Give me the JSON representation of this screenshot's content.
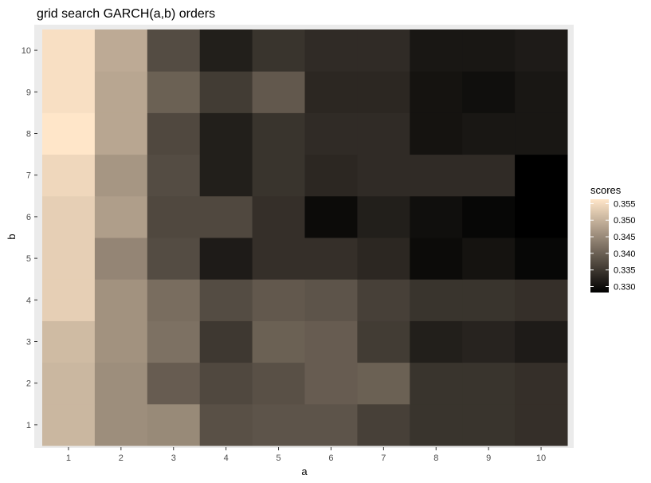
{
  "chart_data": {
    "type": "heatmap",
    "title": "grid search GARCH(a,b) orders",
    "xlabel": "a",
    "ylabel": "b",
    "x": [
      "1",
      "2",
      "3",
      "4",
      "5",
      "6",
      "7",
      "8",
      "9",
      "10"
    ],
    "y": [
      "1",
      "2",
      "3",
      "4",
      "5",
      "6",
      "7",
      "8",
      "9",
      "10"
    ],
    "legend": {
      "title": "scores",
      "position": "right",
      "ticks": [
        "0.355",
        "0.350",
        "0.345",
        "0.340",
        "0.335",
        "0.330"
      ],
      "tick_values": [
        0.355,
        0.35,
        0.345,
        0.34,
        0.335,
        0.33
      ],
      "min": 0.3282,
      "max": 0.3563,
      "low_color": "#000000",
      "high_color": "#FFE6C9"
    },
    "grid": true,
    "values": [
      [
        0.3505,
        0.3455,
        0.345,
        0.338,
        0.3385,
        0.3385,
        0.336,
        0.3345,
        0.3345,
        0.334
      ],
      [
        0.3505,
        0.3455,
        0.3395,
        0.337,
        0.338,
        0.3395,
        0.34,
        0.3345,
        0.3345,
        0.334
      ],
      [
        0.351,
        0.346,
        0.342,
        0.335,
        0.34,
        0.3395,
        0.3355,
        0.332,
        0.3325,
        0.3315
      ],
      [
        0.3535,
        0.346,
        0.3415,
        0.3375,
        0.339,
        0.3385,
        0.336,
        0.3345,
        0.3345,
        0.334
      ],
      [
        0.3535,
        0.3445,
        0.3375,
        0.3315,
        0.334,
        0.334,
        0.333,
        0.3295,
        0.3305,
        0.329
      ],
      [
        0.3535,
        0.3475,
        0.337,
        0.337,
        0.334,
        0.3295,
        0.332,
        0.33,
        0.329,
        0.3282
      ],
      [
        0.3545,
        0.3465,
        0.3375,
        0.332,
        0.3345,
        0.333,
        0.3335,
        0.3335,
        0.3335,
        0.3282
      ],
      [
        0.3563,
        0.3485,
        0.337,
        0.332,
        0.3345,
        0.3335,
        0.3335,
        0.3305,
        0.331,
        0.331
      ],
      [
        0.3555,
        0.3485,
        0.34,
        0.3355,
        0.339,
        0.333,
        0.333,
        0.3305,
        0.33,
        0.331
      ],
      [
        0.3555,
        0.349,
        0.3375,
        0.332,
        0.3345,
        0.3335,
        0.3335,
        0.331,
        0.331,
        0.3315
      ]
    ]
  }
}
